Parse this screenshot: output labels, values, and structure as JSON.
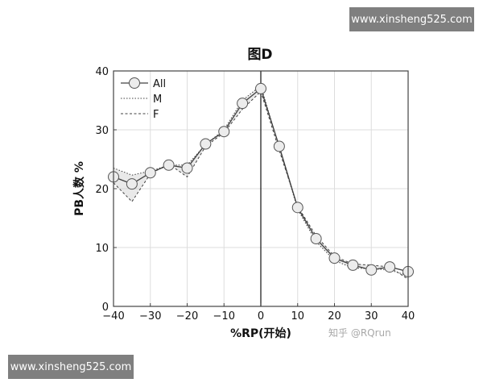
{
  "watermarks": {
    "top": "www.xinsheng525.com",
    "bottom": "www.xinsheng525.com"
  },
  "credit": "知乎 @RQrun",
  "chart_data": {
    "type": "line",
    "title": "图D",
    "xlabel": "%RP(开始)",
    "ylabel": "PB人数 %",
    "xlim": [
      -40,
      40
    ],
    "ylim": [
      0,
      40
    ],
    "xticks": [
      -40,
      -30,
      -20,
      -10,
      0,
      10,
      20,
      30,
      40
    ],
    "yticks": [
      0,
      10,
      20,
      30,
      40
    ],
    "grid": true,
    "legend_position": "top-left",
    "vline_at": 0,
    "x": [
      -40,
      -35,
      -30,
      -25,
      -20,
      -15,
      -10,
      -5,
      0,
      5,
      10,
      15,
      20,
      25,
      30,
      35,
      40
    ],
    "series": [
      {
        "name": "All",
        "style": "solid-circle",
        "values": [
          22,
          20.8,
          22.7,
          24,
          23.5,
          27.6,
          29.7,
          34.5,
          37,
          27.2,
          16.8,
          11.5,
          8.2,
          7.0,
          6.2,
          6.7,
          5.9
        ]
      },
      {
        "name": "M",
        "style": "dotted",
        "values": [
          23.5,
          22.3,
          23,
          24,
          24,
          27.5,
          30,
          35,
          37.5,
          27,
          16.5,
          11,
          7.8,
          6.5,
          6.4,
          6.2,
          5.2
        ]
      },
      {
        "name": "F",
        "style": "dashed",
        "values": [
          21,
          17.8,
          22.5,
          24.2,
          22,
          27.2,
          29.5,
          33.5,
          36.5,
          26.5,
          17,
          12,
          8.5,
          7.2,
          7.0,
          6.7,
          4.6
        ]
      }
    ],
    "colors": {
      "line": "#404040",
      "marker_fill": "#ececec",
      "grid": "#dddddd",
      "vline": "#333333"
    }
  }
}
